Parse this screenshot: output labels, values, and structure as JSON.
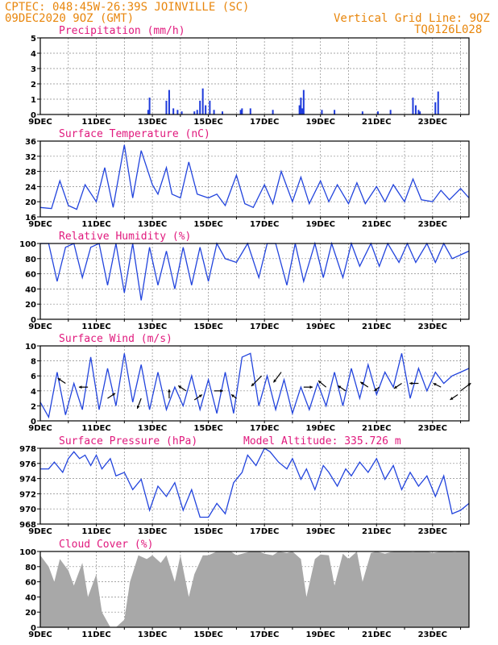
{
  "header": {
    "line1": "CPTEC:  048:45W-26:39S  JOINVILLE (SC)",
    "line2": "09DEC2020 9OZ (GMT)",
    "grid_note": "Vertical Grid Line: 9OZ",
    "code": "TQ0126L028"
  },
  "x_tick_labels": [
    "9DEC",
    "11DEC",
    "13DEC",
    "15DEC",
    "17DEC",
    "19DEC",
    "21DEC",
    "23DEC"
  ],
  "colors": {
    "header": "#e8860c",
    "title": "#e0197d",
    "line": "#2244dd",
    "bar": "#1f3bdb",
    "cloud": "#a8a8a8"
  },
  "chart_data": [
    {
      "type": "bar",
      "title": "Precipitation (mm/h)",
      "ylim": [
        0,
        5
      ],
      "yticks": [
        "5",
        "4",
        "3",
        "2",
        "1",
        "0"
      ],
      "x": [
        3.85,
        3.9,
        4.5,
        4.6,
        4.75,
        4.9,
        5.05,
        5.5,
        5.6,
        5.7,
        5.8,
        5.9,
        6.05,
        6.2,
        6.5,
        7.15,
        7.2,
        7.5,
        8.3,
        9.25,
        9.3,
        9.35,
        9.4,
        10.05,
        10.5,
        11.5,
        12.05,
        12.5,
        13.3,
        13.4,
        13.5,
        13.55,
        14.1,
        14.2
      ],
      "values": [
        0.3,
        1.1,
        0.9,
        1.6,
        0.4,
        0.3,
        0.2,
        0.2,
        0.3,
        0.9,
        1.7,
        0.6,
        0.9,
        0.3,
        0.2,
        0.3,
        0.4,
        0.4,
        0.3,
        0.6,
        1.1,
        0.4,
        1.6,
        0.3,
        0.3,
        0.2,
        0.2,
        0.3,
        1.1,
        0.6,
        0.3,
        0.2,
        0.8,
        1.5
      ]
    },
    {
      "type": "line",
      "title": "Surface Temperature (nC)",
      "ylim": [
        16,
        36
      ],
      "yticks": [
        "36",
        "32",
        "28",
        "24",
        "20",
        "16"
      ],
      "x": [
        0.0,
        0.4,
        0.7,
        1.0,
        1.3,
        1.6,
        2.0,
        2.3,
        2.6,
        3.0,
        3.3,
        3.6,
        4.0,
        4.2,
        4.5,
        4.7,
        5.0,
        5.3,
        5.6,
        6.0,
        6.3,
        6.6,
        7.0,
        7.3,
        7.6,
        8.0,
        8.3,
        8.6,
        9.0,
        9.3,
        9.6,
        10.0,
        10.3,
        10.6,
        11.0,
        11.3,
        11.6,
        12.0,
        12.3,
        12.6,
        13.0,
        13.3,
        13.6,
        14.0,
        14.3,
        14.6,
        15.0,
        15.3
      ],
      "values": [
        18.5,
        18.2,
        25.5,
        19.0,
        18.0,
        24.5,
        20.0,
        29.0,
        18.5,
        35.0,
        21.0,
        33.5,
        24.5,
        22.0,
        29.0,
        22.0,
        21.0,
        30.5,
        22.0,
        21.0,
        22.0,
        19.0,
        27.0,
        19.5,
        18.5,
        24.5,
        19.5,
        28.0,
        20.0,
        26.5,
        19.5,
        25.5,
        20.0,
        24.5,
        19.5,
        25.0,
        19.5,
        24.0,
        20.0,
        24.5,
        20.0,
        26.0,
        20.5,
        20.0,
        23.0,
        20.5,
        23.5,
        21.0
      ]
    },
    {
      "type": "line",
      "title": "Relative Humidity (%)",
      "ylim": [
        0,
        100
      ],
      "yticks": [
        "100",
        "80",
        "60",
        "40",
        "20",
        "0"
      ],
      "x": [
        0.0,
        0.3,
        0.6,
        0.9,
        1.2,
        1.5,
        1.8,
        2.1,
        2.4,
        2.7,
        3.0,
        3.3,
        3.6,
        3.9,
        4.2,
        4.5,
        4.8,
        5.1,
        5.4,
        5.7,
        6.0,
        6.3,
        6.6,
        7.0,
        7.4,
        7.8,
        8.1,
        8.4,
        8.8,
        9.1,
        9.4,
        9.8,
        10.1,
        10.4,
        10.8,
        11.1,
        11.4,
        11.8,
        12.1,
        12.4,
        12.8,
        13.1,
        13.4,
        13.8,
        14.1,
        14.4,
        14.7,
        15.0,
        15.3
      ],
      "values": [
        100,
        100,
        50,
        95,
        100,
        55,
        95,
        100,
        45,
        100,
        35,
        100,
        25,
        95,
        45,
        90,
        40,
        95,
        45,
        95,
        50,
        100,
        80,
        75,
        100,
        55,
        100,
        100,
        45,
        100,
        50,
        100,
        55,
        100,
        55,
        100,
        70,
        100,
        70,
        100,
        75,
        100,
        75,
        100,
        75,
        100,
        80,
        85,
        90
      ]
    },
    {
      "type": "line",
      "title": "Surface Wind (m/s)",
      "ylim": [
        0,
        10
      ],
      "yticks": [
        "10",
        "8",
        "6",
        "4",
        "2",
        "0"
      ],
      "x": [
        0.0,
        0.3,
        0.6,
        0.9,
        1.2,
        1.5,
        1.8,
        2.1,
        2.4,
        2.7,
        3.0,
        3.3,
        3.6,
        3.9,
        4.2,
        4.5,
        4.8,
        5.1,
        5.4,
        5.7,
        6.0,
        6.3,
        6.6,
        6.9,
        7.2,
        7.5,
        7.8,
        8.1,
        8.4,
        8.7,
        9.0,
        9.3,
        9.6,
        9.9,
        10.2,
        10.5,
        10.8,
        11.1,
        11.4,
        11.7,
        12.0,
        12.3,
        12.6,
        12.9,
        13.2,
        13.5,
        13.8,
        14.1,
        14.4,
        14.7,
        15.0,
        15.3
      ],
      "values": [
        2.5,
        0.5,
        6.5,
        0.8,
        5.0,
        1.5,
        8.5,
        1.5,
        7.0,
        2.0,
        9.0,
        2.5,
        7.5,
        1.5,
        6.5,
        1.5,
        4.5,
        2.0,
        6.0,
        1.5,
        5.5,
        1.0,
        6.5,
        1.0,
        8.5,
        9.0,
        2.0,
        6.0,
        1.5,
        5.5,
        1.0,
        4.5,
        1.5,
        5.0,
        2.0,
        6.5,
        2.0,
        7.0,
        3.0,
        7.5,
        3.5,
        6.5,
        4.5,
        9.0,
        3.0,
        7.0,
        4.0,
        6.5,
        5.0,
        6.0,
        6.5,
        7.0
      ],
      "arrows": [
        {
          "x": 0.9,
          "y": 5.0,
          "dx": -6,
          "dy": -4
        },
        {
          "x": 1.7,
          "y": 4.5,
          "dx": -7,
          "dy": 0
        },
        {
          "x": 2.4,
          "y": 3.0,
          "dx": 6,
          "dy": -4
        },
        {
          "x": 3.6,
          "y": 3.0,
          "dx": -3,
          "dy": 8
        },
        {
          "x": 4.6,
          "y": 3.0,
          "dx": 0,
          "dy": -7
        },
        {
          "x": 5.2,
          "y": 4.0,
          "dx": -6,
          "dy": -4
        },
        {
          "x": 5.5,
          "y": 2.8,
          "dx": 6,
          "dy": -4
        },
        {
          "x": 6.2,
          "y": 4.0,
          "dx": 7,
          "dy": 0
        },
        {
          "x": 7.0,
          "y": 3.0,
          "dx": -4,
          "dy": -3
        },
        {
          "x": 7.9,
          "y": 6.0,
          "dx": -8,
          "dy": 8
        },
        {
          "x": 8.6,
          "y": 6.5,
          "dx": -6,
          "dy": 8
        },
        {
          "x": 9.4,
          "y": 4.5,
          "dx": 7,
          "dy": 0
        },
        {
          "x": 10.2,
          "y": 4.5,
          "dx": -6,
          "dy": -5
        },
        {
          "x": 10.9,
          "y": 4.0,
          "dx": -6,
          "dy": -4
        },
        {
          "x": 11.7,
          "y": 4.5,
          "dx": -6,
          "dy": -4
        },
        {
          "x": 12.1,
          "y": 4.5,
          "dx": -4,
          "dy": 3
        },
        {
          "x": 12.9,
          "y": 5.0,
          "dx": -6,
          "dy": 4
        },
        {
          "x": 13.5,
          "y": 5.0,
          "dx": -7,
          "dy": 0
        },
        {
          "x": 14.3,
          "y": 4.5,
          "dx": -6,
          "dy": -3
        },
        {
          "x": 15.0,
          "y": 4.0,
          "dx": 8,
          "dy": -6
        },
        {
          "x": 14.9,
          "y": 3.5,
          "dx": -6,
          "dy": 4
        }
      ]
    },
    {
      "type": "line",
      "title": "Surface Pressure (hPa)",
      "annotation": "Model Altitude: 335.726  m",
      "ylim": [
        967,
        978
      ],
      "yticks": [
        "978",
        "976",
        "974",
        "972",
        "970",
        "968"
      ],
      "x": [
        0.0,
        0.3,
        0.5,
        0.8,
        1.0,
        1.2,
        1.4,
        1.6,
        1.8,
        2.0,
        2.2,
        2.5,
        2.7,
        3.0,
        3.3,
        3.6,
        3.9,
        4.2,
        4.5,
        4.8,
        5.1,
        5.4,
        5.7,
        6.0,
        6.3,
        6.6,
        6.9,
        7.2,
        7.4,
        7.7,
        8.0,
        8.2,
        8.5,
        8.8,
        9.0,
        9.3,
        9.5,
        9.8,
        10.1,
        10.3,
        10.6,
        10.9,
        11.1,
        11.4,
        11.7,
        12.0,
        12.3,
        12.6,
        12.9,
        13.2,
        13.5,
        13.8,
        14.1,
        14.4,
        14.7,
        15.0,
        15.3
      ],
      "values": [
        975.0,
        975.0,
        976.0,
        974.5,
        976.5,
        977.5,
        976.5,
        977.0,
        975.5,
        977.0,
        975.0,
        976.5,
        974.0,
        974.5,
        972.0,
        973.5,
        969.0,
        972.5,
        971.0,
        973.0,
        969.0,
        972.0,
        968.0,
        968.0,
        970.0,
        968.5,
        973.0,
        974.5,
        977.0,
        975.5,
        978.0,
        977.5,
        976.0,
        975.0,
        976.5,
        973.5,
        975.0,
        972.0,
        975.5,
        974.5,
        972.5,
        975.0,
        974.0,
        976.0,
        974.5,
        976.5,
        973.5,
        975.5,
        972.0,
        974.5,
        972.5,
        974.0,
        971.0,
        974.0,
        968.5,
        969.0,
        970.0
      ]
    },
    {
      "type": "area",
      "title": "Cloud Cover (%)",
      "ylim": [
        0,
        100
      ],
      "yticks": [
        "100",
        "80",
        "60",
        "40",
        "20",
        "0"
      ],
      "x": [
        0.0,
        0.3,
        0.5,
        0.7,
        1.0,
        1.2,
        1.5,
        1.7,
        2.0,
        2.2,
        2.5,
        2.7,
        3.0,
        3.2,
        3.5,
        3.8,
        4.0,
        4.3,
        4.5,
        4.8,
        5.0,
        5.3,
        5.5,
        5.8,
        6.0,
        6.3,
        6.5,
        6.8,
        7.0,
        7.3,
        7.5,
        7.8,
        8.0,
        8.3,
        8.5,
        8.8,
        9.0,
        9.3,
        9.5,
        9.8,
        10.0,
        10.3,
        10.5,
        10.8,
        11.0,
        11.3,
        11.5,
        11.8,
        12.0,
        12.3,
        12.5,
        12.8,
        13.0,
        13.3,
        13.5,
        13.8,
        14.0,
        14.3,
        14.5,
        14.8,
        15.0,
        15.3
      ],
      "values": [
        95,
        80,
        60,
        90,
        75,
        55,
        85,
        40,
        70,
        20,
        0,
        0,
        10,
        60,
        95,
        90,
        95,
        85,
        95,
        60,
        95,
        40,
        70,
        95,
        95,
        100,
        100,
        100,
        95,
        98,
        100,
        100,
        97,
        95,
        100,
        98,
        100,
        90,
        40,
        90,
        96,
        95,
        55,
        97,
        90,
        100,
        60,
        98,
        100,
        97,
        99,
        100,
        100,
        99,
        100,
        100,
        98,
        100,
        100,
        99,
        100,
        100
      ]
    }
  ]
}
